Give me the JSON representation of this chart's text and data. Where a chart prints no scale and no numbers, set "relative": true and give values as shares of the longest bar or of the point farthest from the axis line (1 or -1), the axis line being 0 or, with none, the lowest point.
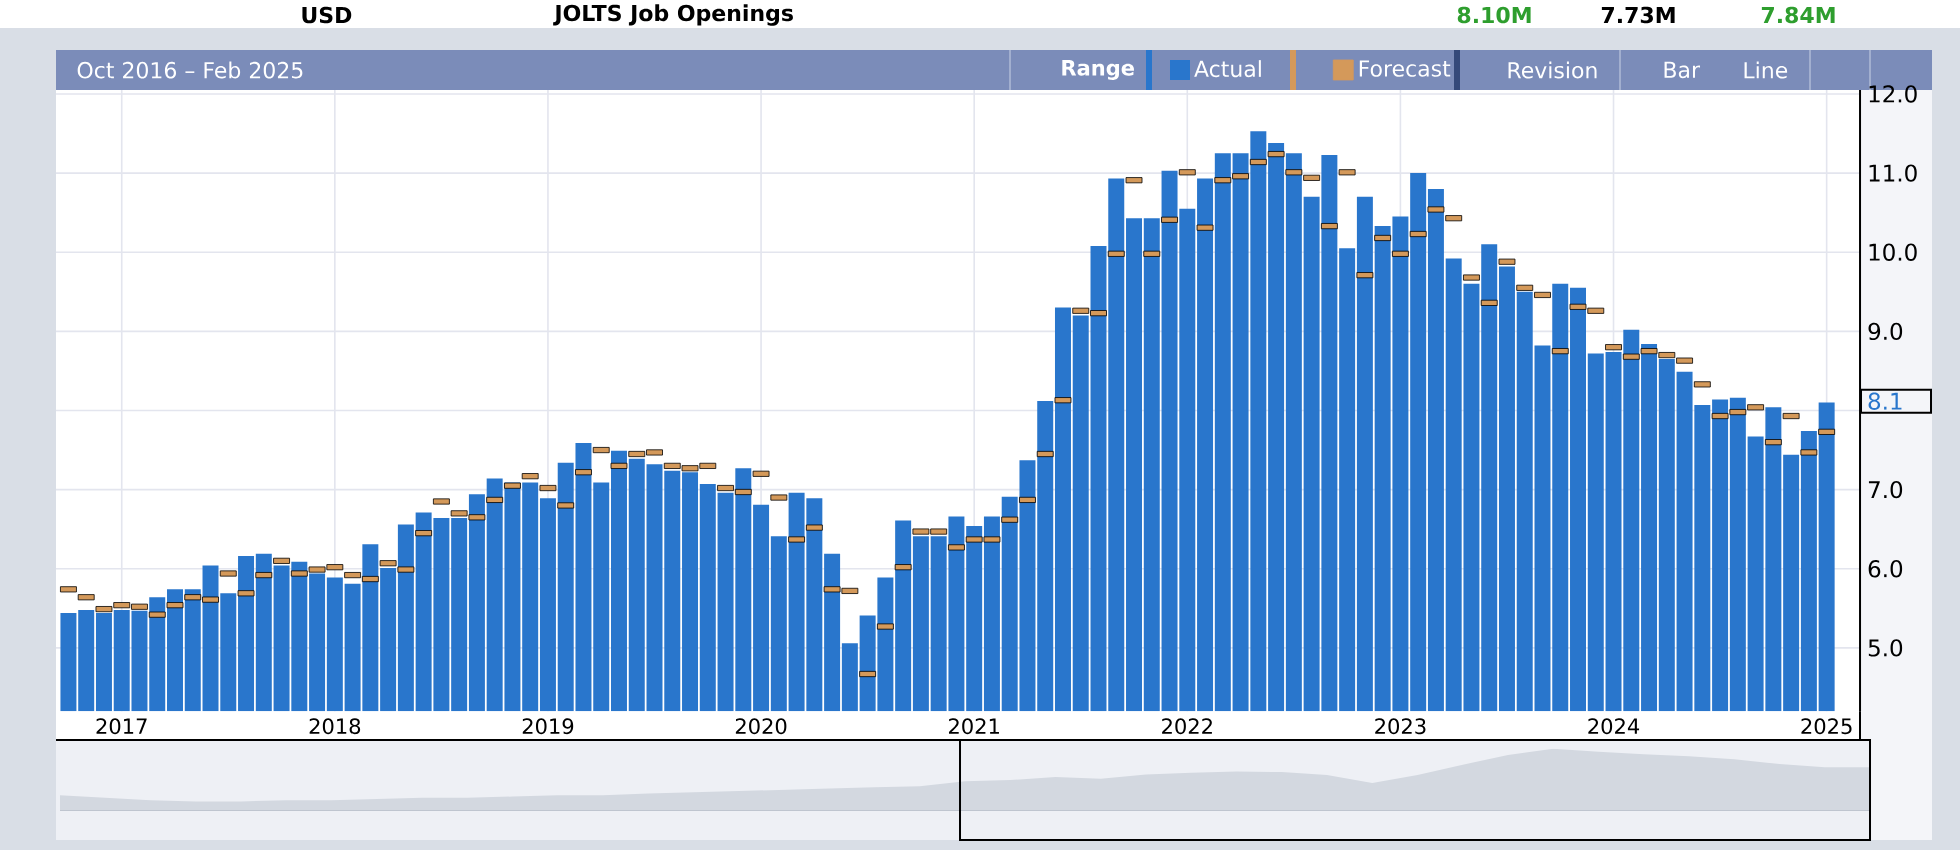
{
  "chart_data": [
    {
      "type": "bar",
      "title": "JOLTS Job Openings",
      "subtitle": "Oct 2016 – Feb 2025",
      "categories": [
        null,
        null,
        null,
        "2017",
        null,
        null,
        null,
        null,
        null,
        null,
        null,
        null,
        null,
        null,
        null,
        "2018",
        null,
        null,
        null,
        null,
        null,
        null,
        null,
        null,
        null,
        null,
        null,
        "2019",
        null,
        null,
        null,
        null,
        null,
        null,
        null,
        null,
        null,
        null,
        null,
        "2020",
        null,
        null,
        null,
        null,
        null,
        null,
        null,
        null,
        null,
        null,
        null,
        "2021",
        null,
        null,
        null,
        null,
        null,
        null,
        null,
        null,
        null,
        null,
        null,
        "2022",
        null,
        null,
        null,
        null,
        null,
        null,
        null,
        null,
        null,
        null,
        null,
        "2023",
        null,
        null,
        null,
        null,
        null,
        null,
        null,
        null,
        null,
        null,
        null,
        "2024",
        null,
        null,
        null,
        null,
        null,
        null,
        null,
        null,
        null,
        null,
        null,
        "2025"
      ],
      "series": [
        {
          "name": "Actual",
          "color": "#2976cc",
          "values": [
            5.44,
            5.48,
            5.44,
            5.48,
            5.47,
            5.64,
            5.74,
            5.74,
            6.04,
            5.69,
            6.16,
            6.19,
            6.04,
            6.09,
            5.94,
            5.89,
            5.81,
            6.31,
            6.01,
            6.56,
            6.71,
            6.64,
            6.64,
            6.94,
            7.14,
            7.09,
            7.09,
            6.89,
            7.34,
            7.59,
            7.09,
            7.49,
            7.39,
            7.32,
            7.24,
            7.22,
            7.07,
            6.96,
            7.27,
            6.81,
            6.41,
            6.96,
            6.89,
            6.19,
            5.06,
            5.41,
            5.89,
            6.61,
            6.41,
            6.41,
            6.66,
            6.54,
            6.66,
            6.91,
            7.37,
            8.12,
            9.3,
            9.2,
            10.08,
            10.93,
            10.43,
            10.43,
            11.03,
            10.55,
            10.93,
            11.25,
            11.25,
            11.53,
            11.38,
            11.25,
            10.7,
            11.23,
            10.05,
            10.7,
            10.33,
            10.45,
            11.0,
            10.8,
            9.92,
            9.6,
            10.1,
            9.82,
            9.5,
            8.82,
            9.6,
            9.55,
            8.72,
            8.74,
            9.02,
            8.84,
            8.65,
            8.49,
            8.07,
            8.14,
            8.16,
            7.67,
            8.04,
            7.44,
            7.74,
            8.1
          ]
        },
        {
          "name": "Forecast",
          "type": "scatter",
          "color": "#d4995a",
          "values": [
            5.74,
            5.64,
            5.49,
            5.54,
            5.52,
            5.42,
            5.54,
            5.64,
            5.61,
            5.94,
            5.69,
            5.92,
            6.1,
            5.94,
            5.99,
            6.02,
            5.92,
            5.87,
            6.07,
            5.99,
            6.45,
            6.85,
            6.7,
            6.65,
            6.87,
            7.05,
            7.17,
            7.02,
            6.8,
            7.22,
            7.5,
            7.3,
            7.45,
            7.47,
            7.3,
            7.27,
            7.3,
            7.02,
            6.97,
            7.2,
            6.9,
            6.37,
            6.52,
            5.74,
            5.72,
            4.67,
            5.27,
            6.02,
            6.47,
            6.47,
            6.27,
            6.37,
            6.37,
            6.62,
            6.87,
            7.45,
            8.13,
            9.26,
            9.23,
            9.98,
            10.91,
            9.98,
            10.41,
            11.01,
            10.31,
            10.91,
            10.96,
            11.14,
            11.24,
            11.01,
            10.94,
            10.33,
            11.01,
            9.71,
            10.18,
            9.98,
            10.23,
            10.54,
            10.43,
            9.68,
            9.36,
            9.88,
            9.55,
            9.46,
            8.75,
            9.31,
            9.26,
            8.8,
            8.68,
            8.75,
            8.7,
            8.63,
            8.33,
            7.93,
            7.98,
            8.04,
            7.6,
            7.93,
            7.47,
            7.73
          ]
        }
      ],
      "ylim": [
        4.2,
        12.05
      ],
      "yticks": [
        {
          "value": 5,
          "label": "5.0"
        },
        {
          "value": 6,
          "label": "6.0"
        },
        {
          "value": 7,
          "label": "7.0"
        },
        {
          "value": 8,
          "label": null
        },
        {
          "value": 9,
          "label": "9.0"
        },
        {
          "value": 10,
          "label": "10.0"
        },
        {
          "value": 11,
          "label": "11.0"
        },
        {
          "value": 12,
          "label": "12.0"
        }
      ],
      "grid": true,
      "legend": "top right",
      "annotations": [
        "USD",
        "8.10M",
        "7.73M",
        "7.84M",
        "Range",
        "Revision",
        "Bar",
        "Line",
        "8.1"
      ]
    },
    {
      "type": "area",
      "relative": true,
      "color": "#d3d8e0",
      "categories": [
        null,
        null,
        null,
        null,
        null,
        null,
        null,
        null,
        null,
        null,
        null,
        null,
        null,
        null,
        null,
        null,
        null,
        null,
        null,
        null,
        null,
        null,
        null,
        null,
        null,
        null,
        null,
        null,
        null,
        null,
        null,
        null,
        null,
        null,
        null,
        null,
        null,
        null,
        null,
        null,
        null
      ],
      "values": [
        0.24,
        0.2,
        0.16,
        0.14,
        0.14,
        0.16,
        0.16,
        0.18,
        0.2,
        0.2,
        0.22,
        0.24,
        0.24,
        0.27,
        0.29,
        0.31,
        0.33,
        0.35,
        0.37,
        0.39,
        0.47,
        0.49,
        0.54,
        0.51,
        0.58,
        0.61,
        0.63,
        0.62,
        0.57,
        0.44,
        0.57,
        0.74,
        0.9,
        1.0,
        0.95,
        0.91,
        0.88,
        0.83,
        0.75,
        0.7,
        0.7
      ]
    }
  ]
}
